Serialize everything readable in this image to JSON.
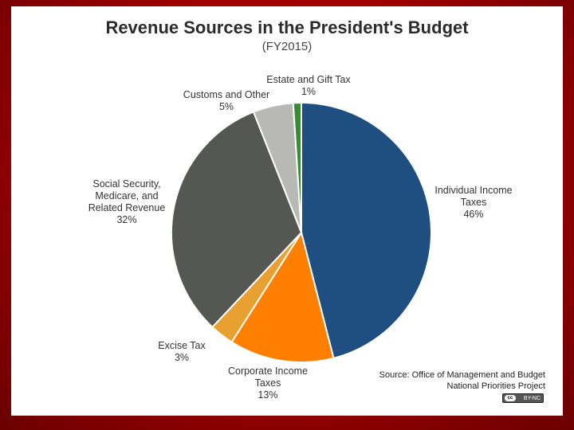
{
  "slide": {
    "colors": {
      "outer_background": "#a00000",
      "card_background": "#ffffff"
    }
  },
  "chart_data": {
    "type": "pie",
    "title": "Revenue Sources in the President's Budget",
    "subtitle": "(FY2015)",
    "slices": [
      {
        "label_lines": [
          "Individual  Income",
          "Taxes"
        ],
        "value": 46,
        "percent_label": "46%",
        "color": "#1f4e80"
      },
      {
        "label_lines": [
          "Corporate  Income",
          "Taxes"
        ],
        "value": 13,
        "percent_label": "13%",
        "color": "#ff8000"
      },
      {
        "label_lines": [
          "Excise Tax"
        ],
        "value": 3,
        "percent_label": "3%",
        "color": "#e8a030"
      },
      {
        "label_lines": [
          "Social Security,",
          "Medicare, and",
          "Related Revenue"
        ],
        "value": 32,
        "percent_label": "32%",
        "color": "#555753"
      },
      {
        "label_lines": [
          "Customs and Other"
        ],
        "value": 5,
        "percent_label": "5%",
        "color": "#b8b8b5"
      },
      {
        "label_lines": [
          "Estate and Gift Tax"
        ],
        "value": 1,
        "percent_label": "1%",
        "color": "#3a8a3a"
      }
    ]
  },
  "source": {
    "line1": "Source: Office of Management and Budget",
    "line2": "National Priorities Project"
  },
  "license": {
    "badge_text": "BY-NC",
    "cc_text": "cc"
  }
}
